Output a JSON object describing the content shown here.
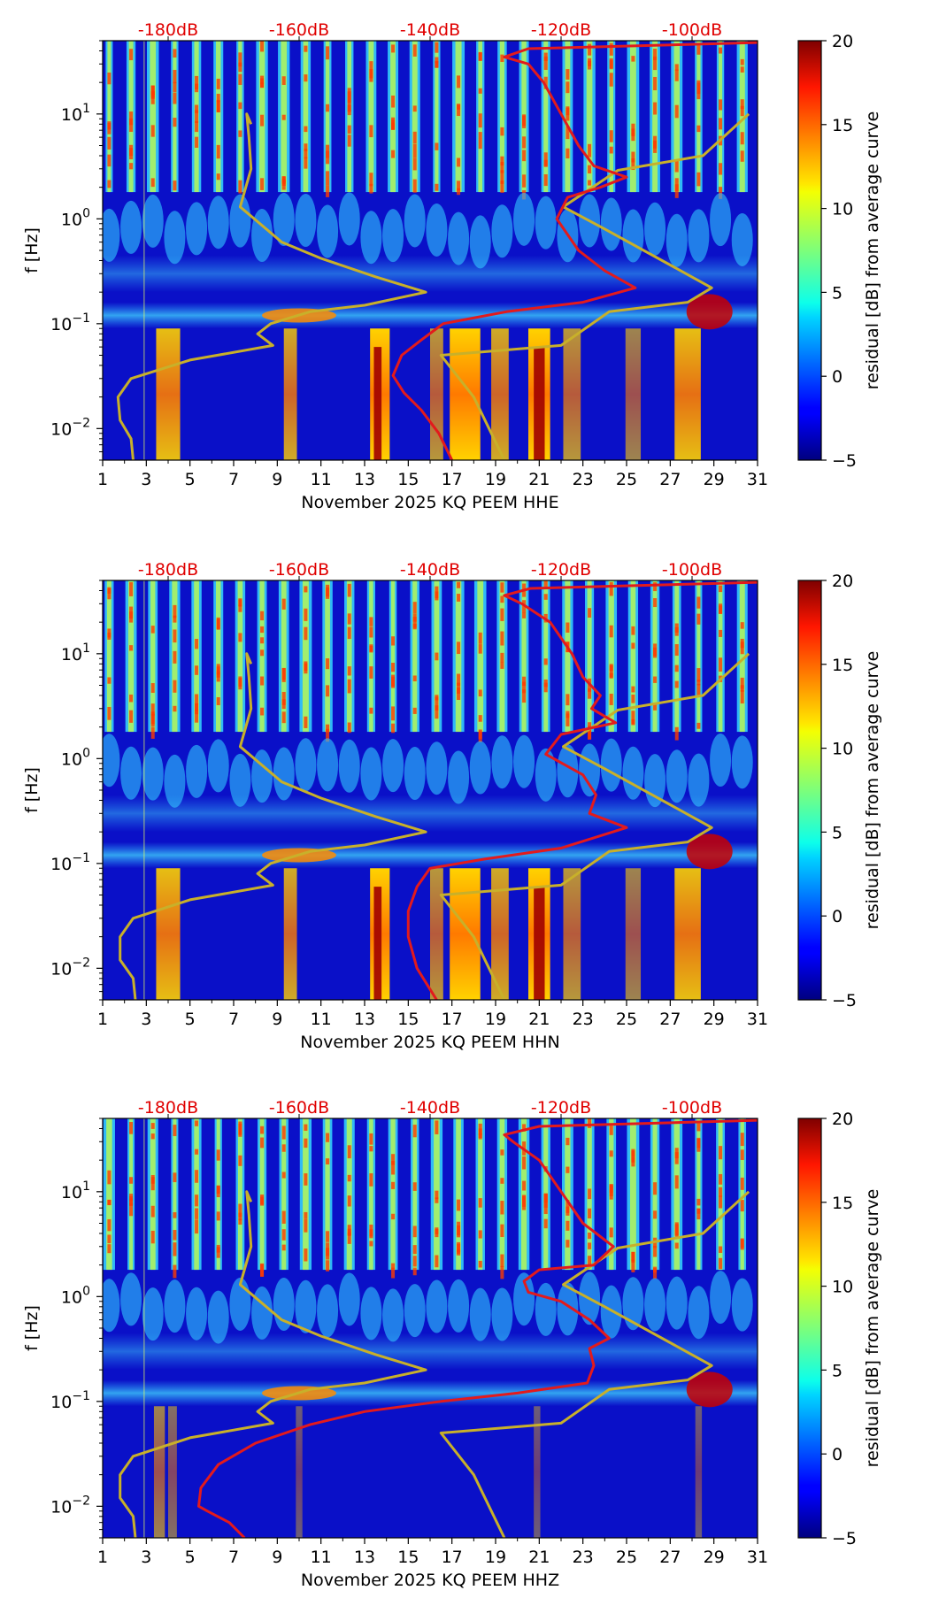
{
  "colors": {
    "red_curve": "#e31a1c",
    "gold_curve": "#c8b02a",
    "top_axis_text": "#e00000",
    "colormap": "jet"
  },
  "chart_data": [
    {
      "type": "heatmap",
      "channel": "HHE",
      "xlabel": "November 2025 KQ PEEM  HHE",
      "ylabel": "f [Hz]",
      "colorbar_label": "residual [dB] from average curve",
      "xlim": [
        1,
        31
      ],
      "ylim": [
        0.005,
        50
      ],
      "yscale": "log",
      "xticks": [
        "1",
        "3",
        "5",
        "7",
        "9",
        "11",
        "13",
        "15",
        "17",
        "19",
        "21",
        "23",
        "25",
        "27",
        "29",
        "31"
      ],
      "yticks": [
        {
          "value": 0.01,
          "base": "10",
          "exp": "−2"
        },
        {
          "value": 0.1,
          "base": "10",
          "exp": "−1"
        },
        {
          "value": 1,
          "base": "10",
          "exp": "0"
        },
        {
          "value": 10,
          "base": "10",
          "exp": "1"
        }
      ],
      "top_axis_ticks": [
        {
          "x": 4.0,
          "label": "-180dB"
        },
        {
          "x": 10.0,
          "label": "-160dB"
        },
        {
          "x": 16.0,
          "label": "-140dB"
        },
        {
          "x": 22.0,
          "label": "-120dB"
        },
        {
          "x": 28.0,
          "label": "-100dB"
        }
      ],
      "colorbar_range": [
        -5,
        20
      ],
      "colorbar_ticks": [
        "−5",
        "0",
        "5",
        "10",
        "15",
        "20"
      ],
      "red_curve": [
        [
          17.0,
          0.005
        ],
        [
          16.4,
          0.009
        ],
        [
          15.6,
          0.015
        ],
        [
          14.8,
          0.022
        ],
        [
          14.3,
          0.032
        ],
        [
          14.7,
          0.05
        ],
        [
          15.6,
          0.07
        ],
        [
          16.6,
          0.1
        ],
        [
          19.5,
          0.13
        ],
        [
          23.0,
          0.16
        ],
        [
          25.4,
          0.22
        ],
        [
          24.0,
          0.32
        ],
        [
          22.8,
          0.5
        ],
        [
          21.8,
          1.0
        ],
        [
          22.3,
          1.6
        ],
        [
          23.8,
          2.0
        ],
        [
          25.0,
          2.5
        ],
        [
          23.5,
          3.2
        ],
        [
          22.8,
          5.0
        ],
        [
          22.0,
          10.0
        ],
        [
          21.2,
          20.0
        ],
        [
          20.5,
          30.0
        ],
        [
          19.4,
          35.0
        ],
        [
          20.5,
          42.0
        ],
        [
          31.0,
          48.0
        ]
      ],
      "gold_curve": [
        [
          2.4,
          0.005
        ],
        [
          2.3,
          0.008
        ],
        [
          1.8,
          0.012
        ],
        [
          1.7,
          0.02
        ],
        [
          2.3,
          0.03
        ],
        [
          5.0,
          0.045
        ],
        [
          8.8,
          0.062
        ],
        [
          8.1,
          0.08
        ],
        [
          8.7,
          0.1
        ],
        [
          10.5,
          0.13
        ],
        [
          13.0,
          0.15
        ],
        [
          15.8,
          0.2
        ],
        [
          13.5,
          0.28
        ],
        [
          11.0,
          0.42
        ],
        [
          9.2,
          0.6
        ],
        [
          7.3,
          1.3
        ],
        [
          7.8,
          3.0
        ],
        [
          7.7,
          6.0
        ],
        [
          7.6,
          10.0
        ],
        [
          7.8,
          8.0
        ]
      ],
      "gold_curve_2": [
        [
          19.4,
          0.005
        ],
        [
          18.0,
          0.02
        ],
        [
          16.5,
          0.05
        ],
        [
          22.0,
          0.062
        ],
        [
          24.2,
          0.13
        ],
        [
          27.8,
          0.16
        ],
        [
          28.9,
          0.22
        ],
        [
          24.0,
          0.8
        ],
        [
          22.1,
          1.3
        ],
        [
          24.6,
          2.9
        ],
        [
          28.5,
          4.0
        ],
        [
          30.6,
          10.0
        ]
      ]
    },
    {
      "type": "heatmap",
      "channel": "HHN",
      "xlabel": "November 2025 KQ PEEM  HHN",
      "ylabel": "f [Hz]",
      "colorbar_label": "residual [dB] from average curve",
      "xlim": [
        1,
        31
      ],
      "ylim": [
        0.005,
        50
      ],
      "yscale": "log",
      "xticks": [
        "1",
        "3",
        "5",
        "7",
        "9",
        "11",
        "13",
        "15",
        "17",
        "19",
        "21",
        "23",
        "25",
        "27",
        "29",
        "31"
      ],
      "yticks": [
        {
          "value": 0.01,
          "base": "10",
          "exp": "−2"
        },
        {
          "value": 0.1,
          "base": "10",
          "exp": "−1"
        },
        {
          "value": 1,
          "base": "10",
          "exp": "0"
        },
        {
          "value": 10,
          "base": "10",
          "exp": "1"
        }
      ],
      "top_axis_ticks": [
        {
          "x": 4.0,
          "label": "-180dB"
        },
        {
          "x": 10.0,
          "label": "-160dB"
        },
        {
          "x": 16.0,
          "label": "-140dB"
        },
        {
          "x": 22.0,
          "label": "-120dB"
        },
        {
          "x": 28.0,
          "label": "-100dB"
        }
      ],
      "colorbar_range": [
        -5,
        20
      ],
      "colorbar_ticks": [
        "−5",
        "0",
        "5",
        "10",
        "15",
        "20"
      ],
      "red_curve": [
        [
          16.3,
          0.005
        ],
        [
          15.4,
          0.01
        ],
        [
          15.0,
          0.02
        ],
        [
          15.0,
          0.035
        ],
        [
          15.4,
          0.06
        ],
        [
          16.0,
          0.09
        ],
        [
          18.5,
          0.11
        ],
        [
          22.0,
          0.14
        ],
        [
          25.0,
          0.22
        ],
        [
          23.3,
          0.3
        ],
        [
          23.6,
          0.45
        ],
        [
          23.0,
          0.7
        ],
        [
          21.3,
          1.1
        ],
        [
          22.0,
          1.7
        ],
        [
          24.5,
          2.2
        ],
        [
          23.4,
          3.0
        ],
        [
          23.8,
          4.0
        ],
        [
          23.0,
          6.0
        ],
        [
          22.5,
          10.0
        ],
        [
          21.5,
          20.0
        ],
        [
          20.2,
          30.0
        ],
        [
          19.4,
          36.0
        ],
        [
          20.6,
          42.0
        ],
        [
          31.0,
          48.0
        ]
      ],
      "gold_curve": [
        [
          2.5,
          0.005
        ],
        [
          2.4,
          0.008
        ],
        [
          1.8,
          0.012
        ],
        [
          1.8,
          0.02
        ],
        [
          2.4,
          0.03
        ],
        [
          5.0,
          0.045
        ],
        [
          8.8,
          0.062
        ],
        [
          8.1,
          0.08
        ],
        [
          8.7,
          0.1
        ],
        [
          10.5,
          0.13
        ],
        [
          13.0,
          0.15
        ],
        [
          15.8,
          0.2
        ],
        [
          13.5,
          0.28
        ],
        [
          11.0,
          0.42
        ],
        [
          9.2,
          0.6
        ],
        [
          7.3,
          1.3
        ],
        [
          7.8,
          3.0
        ],
        [
          7.7,
          6.0
        ],
        [
          7.6,
          10.0
        ],
        [
          7.8,
          8.0
        ]
      ],
      "gold_curve_2": [
        [
          19.4,
          0.005
        ],
        [
          18.0,
          0.02
        ],
        [
          16.5,
          0.05
        ],
        [
          22.0,
          0.062
        ],
        [
          24.2,
          0.13
        ],
        [
          27.8,
          0.16
        ],
        [
          28.9,
          0.22
        ],
        [
          24.0,
          0.8
        ],
        [
          22.1,
          1.3
        ],
        [
          24.6,
          2.9
        ],
        [
          28.5,
          4.0
        ],
        [
          30.6,
          10.0
        ]
      ]
    },
    {
      "type": "heatmap",
      "channel": "HHZ",
      "xlabel": "November 2025 KQ PEEM  HHZ",
      "ylabel": "f [Hz]",
      "colorbar_label": "residual [dB] from average curve",
      "xlim": [
        1,
        31
      ],
      "ylim": [
        0.005,
        50
      ],
      "yscale": "log",
      "xticks": [
        "1",
        "3",
        "5",
        "7",
        "9",
        "11",
        "13",
        "15",
        "17",
        "19",
        "21",
        "23",
        "25",
        "27",
        "29",
        "31"
      ],
      "yticks": [
        {
          "value": 0.01,
          "base": "10",
          "exp": "−2"
        },
        {
          "value": 0.1,
          "base": "10",
          "exp": "−1"
        },
        {
          "value": 1,
          "base": "10",
          "exp": "0"
        },
        {
          "value": 10,
          "base": "10",
          "exp": "1"
        }
      ],
      "top_axis_ticks": [
        {
          "x": 4.0,
          "label": "-180dB"
        },
        {
          "x": 10.0,
          "label": "-160dB"
        },
        {
          "x": 16.0,
          "label": "-140dB"
        },
        {
          "x": 22.0,
          "label": "-120dB"
        },
        {
          "x": 28.0,
          "label": "-100dB"
        }
      ],
      "colorbar_range": [
        -5,
        20
      ],
      "colorbar_ticks": [
        "−5",
        "0",
        "5",
        "10",
        "15",
        "20"
      ],
      "red_curve": [
        [
          7.5,
          0.005
        ],
        [
          6.8,
          0.007
        ],
        [
          5.8,
          0.009
        ],
        [
          5.4,
          0.01
        ],
        [
          5.5,
          0.015
        ],
        [
          6.3,
          0.025
        ],
        [
          8.0,
          0.04
        ],
        [
          10.5,
          0.06
        ],
        [
          13.0,
          0.08
        ],
        [
          16.5,
          0.1
        ],
        [
          20.0,
          0.12
        ],
        [
          23.2,
          0.15
        ],
        [
          23.5,
          0.22
        ],
        [
          23.3,
          0.32
        ],
        [
          24.2,
          0.4
        ],
        [
          23.3,
          0.6
        ],
        [
          22.0,
          0.9
        ],
        [
          20.5,
          1.1
        ],
        [
          20.3,
          1.4
        ],
        [
          21.0,
          1.8
        ],
        [
          23.5,
          2.0
        ],
        [
          24.4,
          3.0
        ],
        [
          23.0,
          5.0
        ],
        [
          22.0,
          10.0
        ],
        [
          21.0,
          20.0
        ],
        [
          19.8,
          30.0
        ],
        [
          19.4,
          35.0
        ],
        [
          21.0,
          42.0
        ],
        [
          31.0,
          48.0
        ]
      ],
      "gold_curve": [
        [
          2.5,
          0.005
        ],
        [
          2.4,
          0.008
        ],
        [
          1.8,
          0.012
        ],
        [
          1.8,
          0.02
        ],
        [
          2.4,
          0.03
        ],
        [
          5.0,
          0.045
        ],
        [
          8.8,
          0.062
        ],
        [
          8.1,
          0.08
        ],
        [
          8.7,
          0.1
        ],
        [
          10.5,
          0.13
        ],
        [
          13.0,
          0.15
        ],
        [
          15.8,
          0.2
        ],
        [
          13.5,
          0.28
        ],
        [
          11.0,
          0.42
        ],
        [
          9.2,
          0.6
        ],
        [
          7.3,
          1.3
        ],
        [
          7.8,
          3.0
        ],
        [
          7.7,
          6.0
        ],
        [
          7.6,
          10.0
        ],
        [
          7.8,
          8.0
        ]
      ],
      "gold_curve_2": [
        [
          19.4,
          0.005
        ],
        [
          18.0,
          0.02
        ],
        [
          16.5,
          0.05
        ],
        [
          22.0,
          0.062
        ],
        [
          24.2,
          0.13
        ],
        [
          27.8,
          0.16
        ],
        [
          28.9,
          0.22
        ],
        [
          24.0,
          0.8
        ],
        [
          22.1,
          1.3
        ],
        [
          24.6,
          2.9
        ],
        [
          28.5,
          4.0
        ],
        [
          30.6,
          10.0
        ]
      ]
    }
  ]
}
